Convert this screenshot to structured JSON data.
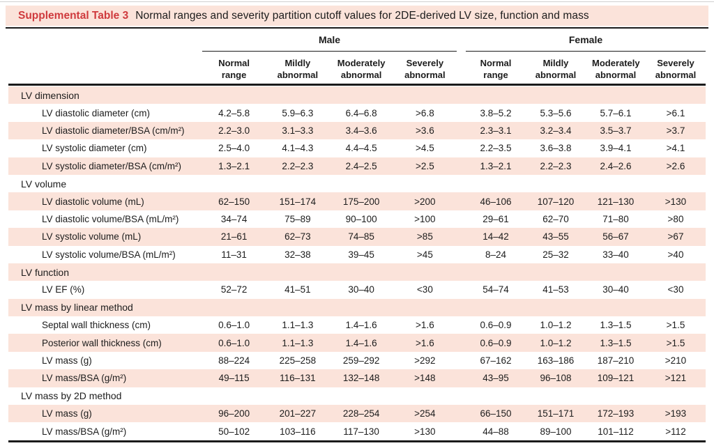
{
  "title": {
    "label": "Supplemental Table 3",
    "text": "Normal ranges and severity partition cutoff values for 2DE-derived LV size, function and mass"
  },
  "header": {
    "groups": [
      {
        "label": "Male"
      },
      {
        "label": "Female"
      }
    ],
    "subcolumns": [
      "Normal range",
      "Mildly abnormal",
      "Moderately abnormal",
      "Severely abnormal"
    ]
  },
  "colors": {
    "stripe": "#fbe3da",
    "title_red": "#cf3a3d",
    "rule": "#1a1a1a"
  },
  "table": {
    "rows": [
      {
        "type": "section",
        "label": "LV dimension"
      },
      {
        "type": "data",
        "label": "LV diastolic diameter (cm)",
        "male": [
          "4.2–5.8",
          "5.9–6.3",
          "6.4–6.8",
          ">6.8"
        ],
        "female": [
          "3.8–5.2",
          "5.3–5.6",
          "5.7–6.1",
          ">6.1"
        ]
      },
      {
        "type": "data",
        "label": "LV diastolic diameter/BSA (cm/m²)",
        "male": [
          "2.2–3.0",
          "3.1–3.3",
          "3.4–3.6",
          ">3.6"
        ],
        "female": [
          "2.3–3.1",
          "3.2–3.4",
          "3.5–3.7",
          ">3.7"
        ]
      },
      {
        "type": "data",
        "label": "LV systolic diameter (cm)",
        "male": [
          "2.5–4.0",
          "4.1–4.3",
          "4.4–4.5",
          ">4.5"
        ],
        "female": [
          "2.2–3.5",
          "3.6–3.8",
          "3.9–4.1",
          ">4.1"
        ]
      },
      {
        "type": "data",
        "label": "LV systolic diameter/BSA (cm/m²)",
        "male": [
          "1.3–2.1",
          "2.2–2.3",
          "2.4–2.5",
          ">2.5"
        ],
        "female": [
          "1.3–2.1",
          "2.2–2.3",
          "2.4–2.6",
          ">2.6"
        ]
      },
      {
        "type": "section",
        "label": "LV volume"
      },
      {
        "type": "data",
        "label": "LV diastolic volume (mL)",
        "male": [
          "62–150",
          "151–174",
          "175–200",
          ">200"
        ],
        "female": [
          "46–106",
          "107–120",
          "121–130",
          ">130"
        ]
      },
      {
        "type": "data",
        "label": "LV diastolic volume/BSA (mL/m²)",
        "male": [
          "34–74",
          "75–89",
          "90–100",
          ">100"
        ],
        "female": [
          "29–61",
          "62–70",
          "71–80",
          ">80"
        ]
      },
      {
        "type": "data",
        "label": "LV systolic volume (mL)",
        "male": [
          "21–61",
          "62–73",
          "74–85",
          ">85"
        ],
        "female": [
          "14–42",
          "43–55",
          "56–67",
          ">67"
        ]
      },
      {
        "type": "data",
        "label": "LV systolic volume/BSA (mL/m²)",
        "male": [
          "11–31",
          "32–38",
          "39–45",
          ">45"
        ],
        "female": [
          "8–24",
          "25–32",
          "33–40",
          ">40"
        ]
      },
      {
        "type": "section",
        "label": "LV function"
      },
      {
        "type": "data",
        "label": "LV EF (%)",
        "male": [
          "52–72",
          "41–51",
          "30–40",
          "<30"
        ],
        "female": [
          "54–74",
          "41–53",
          "30–40",
          "<30"
        ]
      },
      {
        "type": "section",
        "label": "LV mass by linear method"
      },
      {
        "type": "data",
        "label": "Septal wall thickness (cm)",
        "male": [
          "0.6–1.0",
          "1.1–1.3",
          "1.4–1.6",
          ">1.6"
        ],
        "female": [
          "0.6–0.9",
          "1.0–1.2",
          "1.3–1.5",
          ">1.5"
        ]
      },
      {
        "type": "data",
        "label": "Posterior wall thickness (cm)",
        "male": [
          "0.6–1.0",
          "1.1–1.3",
          "1.4–1.6",
          ">1.6"
        ],
        "female": [
          "0.6–0.9",
          "1.0–1.2",
          "1.3–1.5",
          ">1.5"
        ]
      },
      {
        "type": "data",
        "label": "LV mass (g)",
        "male": [
          "88–224",
          "225–258",
          "259–292",
          ">292"
        ],
        "female": [
          "67–162",
          "163–186",
          "187–210",
          ">210"
        ]
      },
      {
        "type": "data",
        "label": "LV mass/BSA (g/m²)",
        "male": [
          "49–115",
          "116–131",
          "132–148",
          ">148"
        ],
        "female": [
          "43–95",
          "96–108",
          "109–121",
          ">121"
        ]
      },
      {
        "type": "section",
        "label": "LV mass by 2D method"
      },
      {
        "type": "data",
        "label": "LV mass (g)",
        "male": [
          "96–200",
          "201–227",
          "228–254",
          ">254"
        ],
        "female": [
          "66–150",
          "151–171",
          "172–193",
          ">193"
        ]
      },
      {
        "type": "data",
        "label": "LV mass/BSA (g/m²)",
        "male": [
          "50–102",
          "103–116",
          "117–130",
          ">130"
        ],
        "female": [
          "44–88",
          "89–100",
          "101–112",
          ">112"
        ]
      }
    ]
  }
}
